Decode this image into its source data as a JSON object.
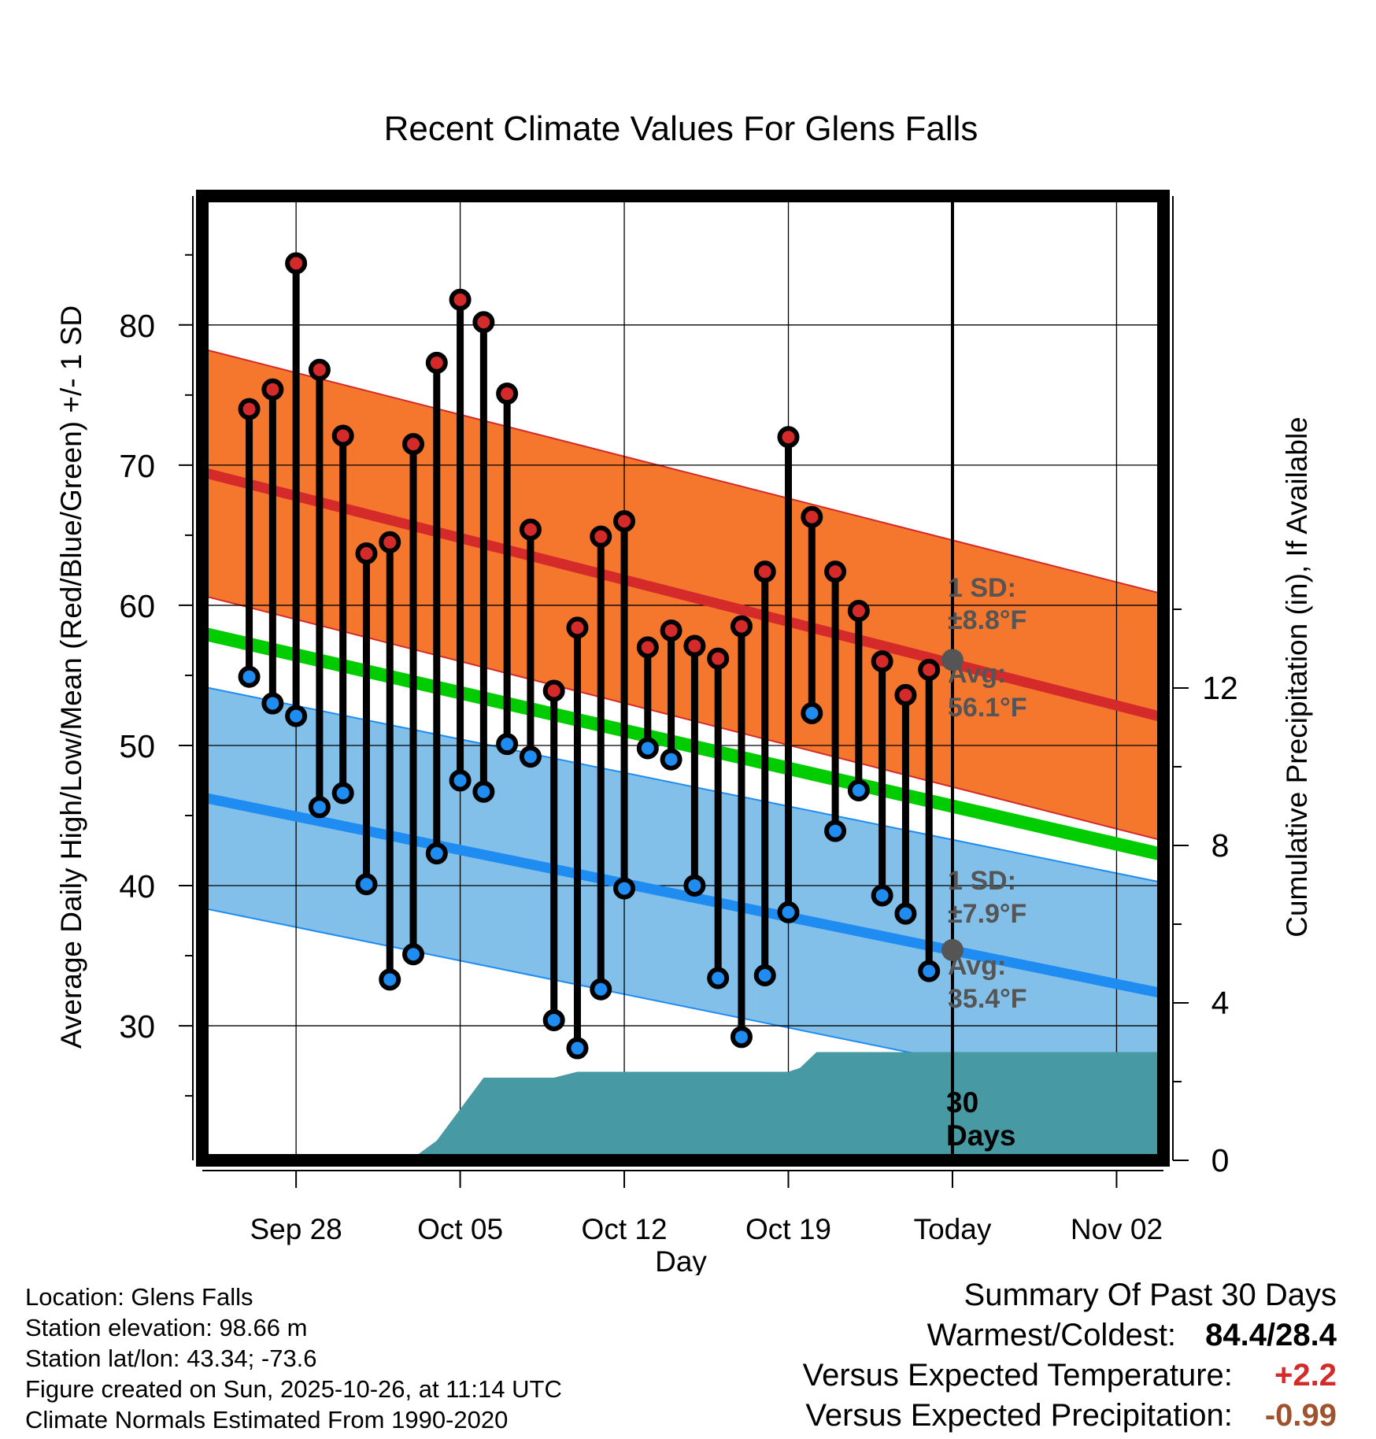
{
  "chart_data": {
    "type": "line",
    "title": "Recent Climate Values For Glens Falls",
    "xlabel": "Day",
    "ylabel": "Average Daily High/Low/Mean (Red/Blue/Green) +/- 1 SD",
    "y2label": "Cumulative Precipitation (in), If Available",
    "xlim": [
      -4,
      37
    ],
    "ylim": [
      20.4,
      89.2
    ],
    "y2lim": [
      0,
      24.5
    ],
    "yticks": [
      30,
      40,
      50,
      60,
      70,
      80
    ],
    "y2ticks": [
      0,
      4,
      8,
      12
    ],
    "xticks": [
      {
        "day": 0,
        "label": "Sep 28"
      },
      {
        "day": 7,
        "label": "Oct 05"
      },
      {
        "day": 14,
        "label": "Oct 12"
      },
      {
        "day": 21,
        "label": "Oct 19"
      },
      {
        "day": 28,
        "label": "Today"
      },
      {
        "day": 35,
        "label": "Nov 02"
      }
    ],
    "today_day": 28,
    "today_label": "30 Days",
    "normal_high": {
      "start": 69.5,
      "end": 52.0,
      "sd": 8.8,
      "color": "#d42a2a",
      "band_color": "#f5772e"
    },
    "normal_low": {
      "start": 46.3,
      "end": 32.3,
      "sd": 7.9,
      "color": "#1e8cf0",
      "band_color": "#82c0ea"
    },
    "normal_mean": {
      "start": 58.0,
      "end": 42.2,
      "color": "#00cc00"
    },
    "today_normals": {
      "high": {
        "sd_label": "1 SD:",
        "sd_value": "±8.8°F",
        "avg_label": "Avg:",
        "avg_value": "56.1°F",
        "value": 56.1
      },
      "low": {
        "sd_label": "1 SD:",
        "sd_value": "±7.9°F",
        "avg_label": "Avg:",
        "avg_value": "35.4°F",
        "value": 35.4
      }
    },
    "days": [
      -2,
      -1,
      0,
      1,
      2,
      3,
      4,
      5,
      6,
      7,
      8,
      9,
      10,
      11,
      12,
      13,
      14,
      15,
      16,
      17,
      18,
      19,
      20,
      21,
      22,
      23,
      24,
      25,
      26,
      27
    ],
    "highs": [
      74.0,
      75.4,
      84.4,
      76.8,
      72.1,
      63.7,
      64.5,
      71.5,
      77.3,
      81.8,
      80.2,
      75.1,
      65.4,
      53.9,
      58.4,
      64.9,
      66.0,
      57.0,
      58.2,
      57.1,
      56.2,
      58.5,
      62.4,
      72.0,
      66.3,
      62.4,
      59.6,
      56.0,
      53.6,
      55.4
    ],
    "lows": [
      54.9,
      53.0,
      52.1,
      45.6,
      46.6,
      40.1,
      33.3,
      35.1,
      42.3,
      47.5,
      46.7,
      50.1,
      49.2,
      30.4,
      28.4,
      32.6,
      39.8,
      49.8,
      49.0,
      40.0,
      33.4,
      29.2,
      33.6,
      38.1,
      52.3,
      43.9,
      46.8,
      39.3,
      38.0,
      33.9
    ],
    "precip": {
      "days": [
        4.8,
        5.2,
        6.0,
        8.0,
        10.0,
        11.0,
        12.0,
        20.0,
        21.0,
        21.5,
        22.2,
        24.0,
        37.0
      ],
      "values": [
        0,
        0.15,
        0.5,
        2.1,
        2.1,
        2.1,
        2.25,
        2.25,
        2.25,
        2.35,
        2.75,
        2.75,
        2.75
      ],
      "color": "#479aa3"
    }
  },
  "footer": {
    "location": "Location: Glens Falls",
    "elevation": "Station elevation: 98.66 m",
    "latlon": "Station lat/lon: 43.34; -73.6",
    "created": "Figure created on Sun, 2025-10-26, at 11:14 UTC",
    "normals": "Climate Normals Estimated From 1990-2020"
  },
  "summary": {
    "title": "Summary Of Past 30 Days",
    "warmest_label": "Warmest/Coldest:",
    "warmest_value": "84.4/28.4",
    "temp_label": "Versus Expected Temperature:",
    "temp_value": "+2.2",
    "temp_color": "#d32a2a",
    "precip_label": "Versus Expected Precipitation:",
    "precip_value": "-0.99",
    "precip_color": "#a0522d"
  }
}
